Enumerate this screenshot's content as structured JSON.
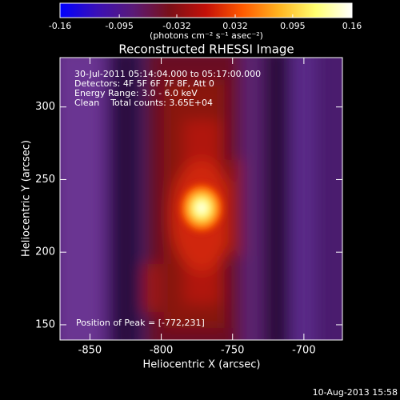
{
  "chart_data": {
    "type": "image",
    "title": "Reconstructed RHESSI Image",
    "x_label": "Heliocentric X (arcsec)",
    "y_label": "Heliocentric Y (arcsec)",
    "xlim": [
      -871,
      -673
    ],
    "xticks": [
      -850,
      -800,
      -750,
      -700
    ],
    "ylim": [
      139.5,
      334
    ],
    "yticks": [
      150,
      200,
      250,
      300
    ],
    "annotations": [
      "30-Jul-2011 05:14:04.000 to 05:17:00.000",
      "Detectors: 4F 5F 6F 7F 8F, Att 0",
      "Energy Range: 3.0 - 6.0 keV",
      "Clean    Total counts: 3.65E+04"
    ],
    "peak_label": "Position of Peak = [-772,231]",
    "colorbar": {
      "label": "(photons cm⁻² s⁻¹ asec⁻²)",
      "lim": [
        -0.16,
        0.16
      ],
      "ticks": [
        -0.16,
        -0.095,
        -0.032,
        0.032,
        0.095,
        0.16
      ],
      "colors": [
        "#0000ff",
        "#3a10b8",
        "#5a1a78",
        "#7a1018",
        "#c41008",
        "#ff5a00",
        "#ffb420",
        "#ffff70",
        "#ffffff"
      ]
    }
  },
  "timestamp": "10-Aug-2013 15:58"
}
